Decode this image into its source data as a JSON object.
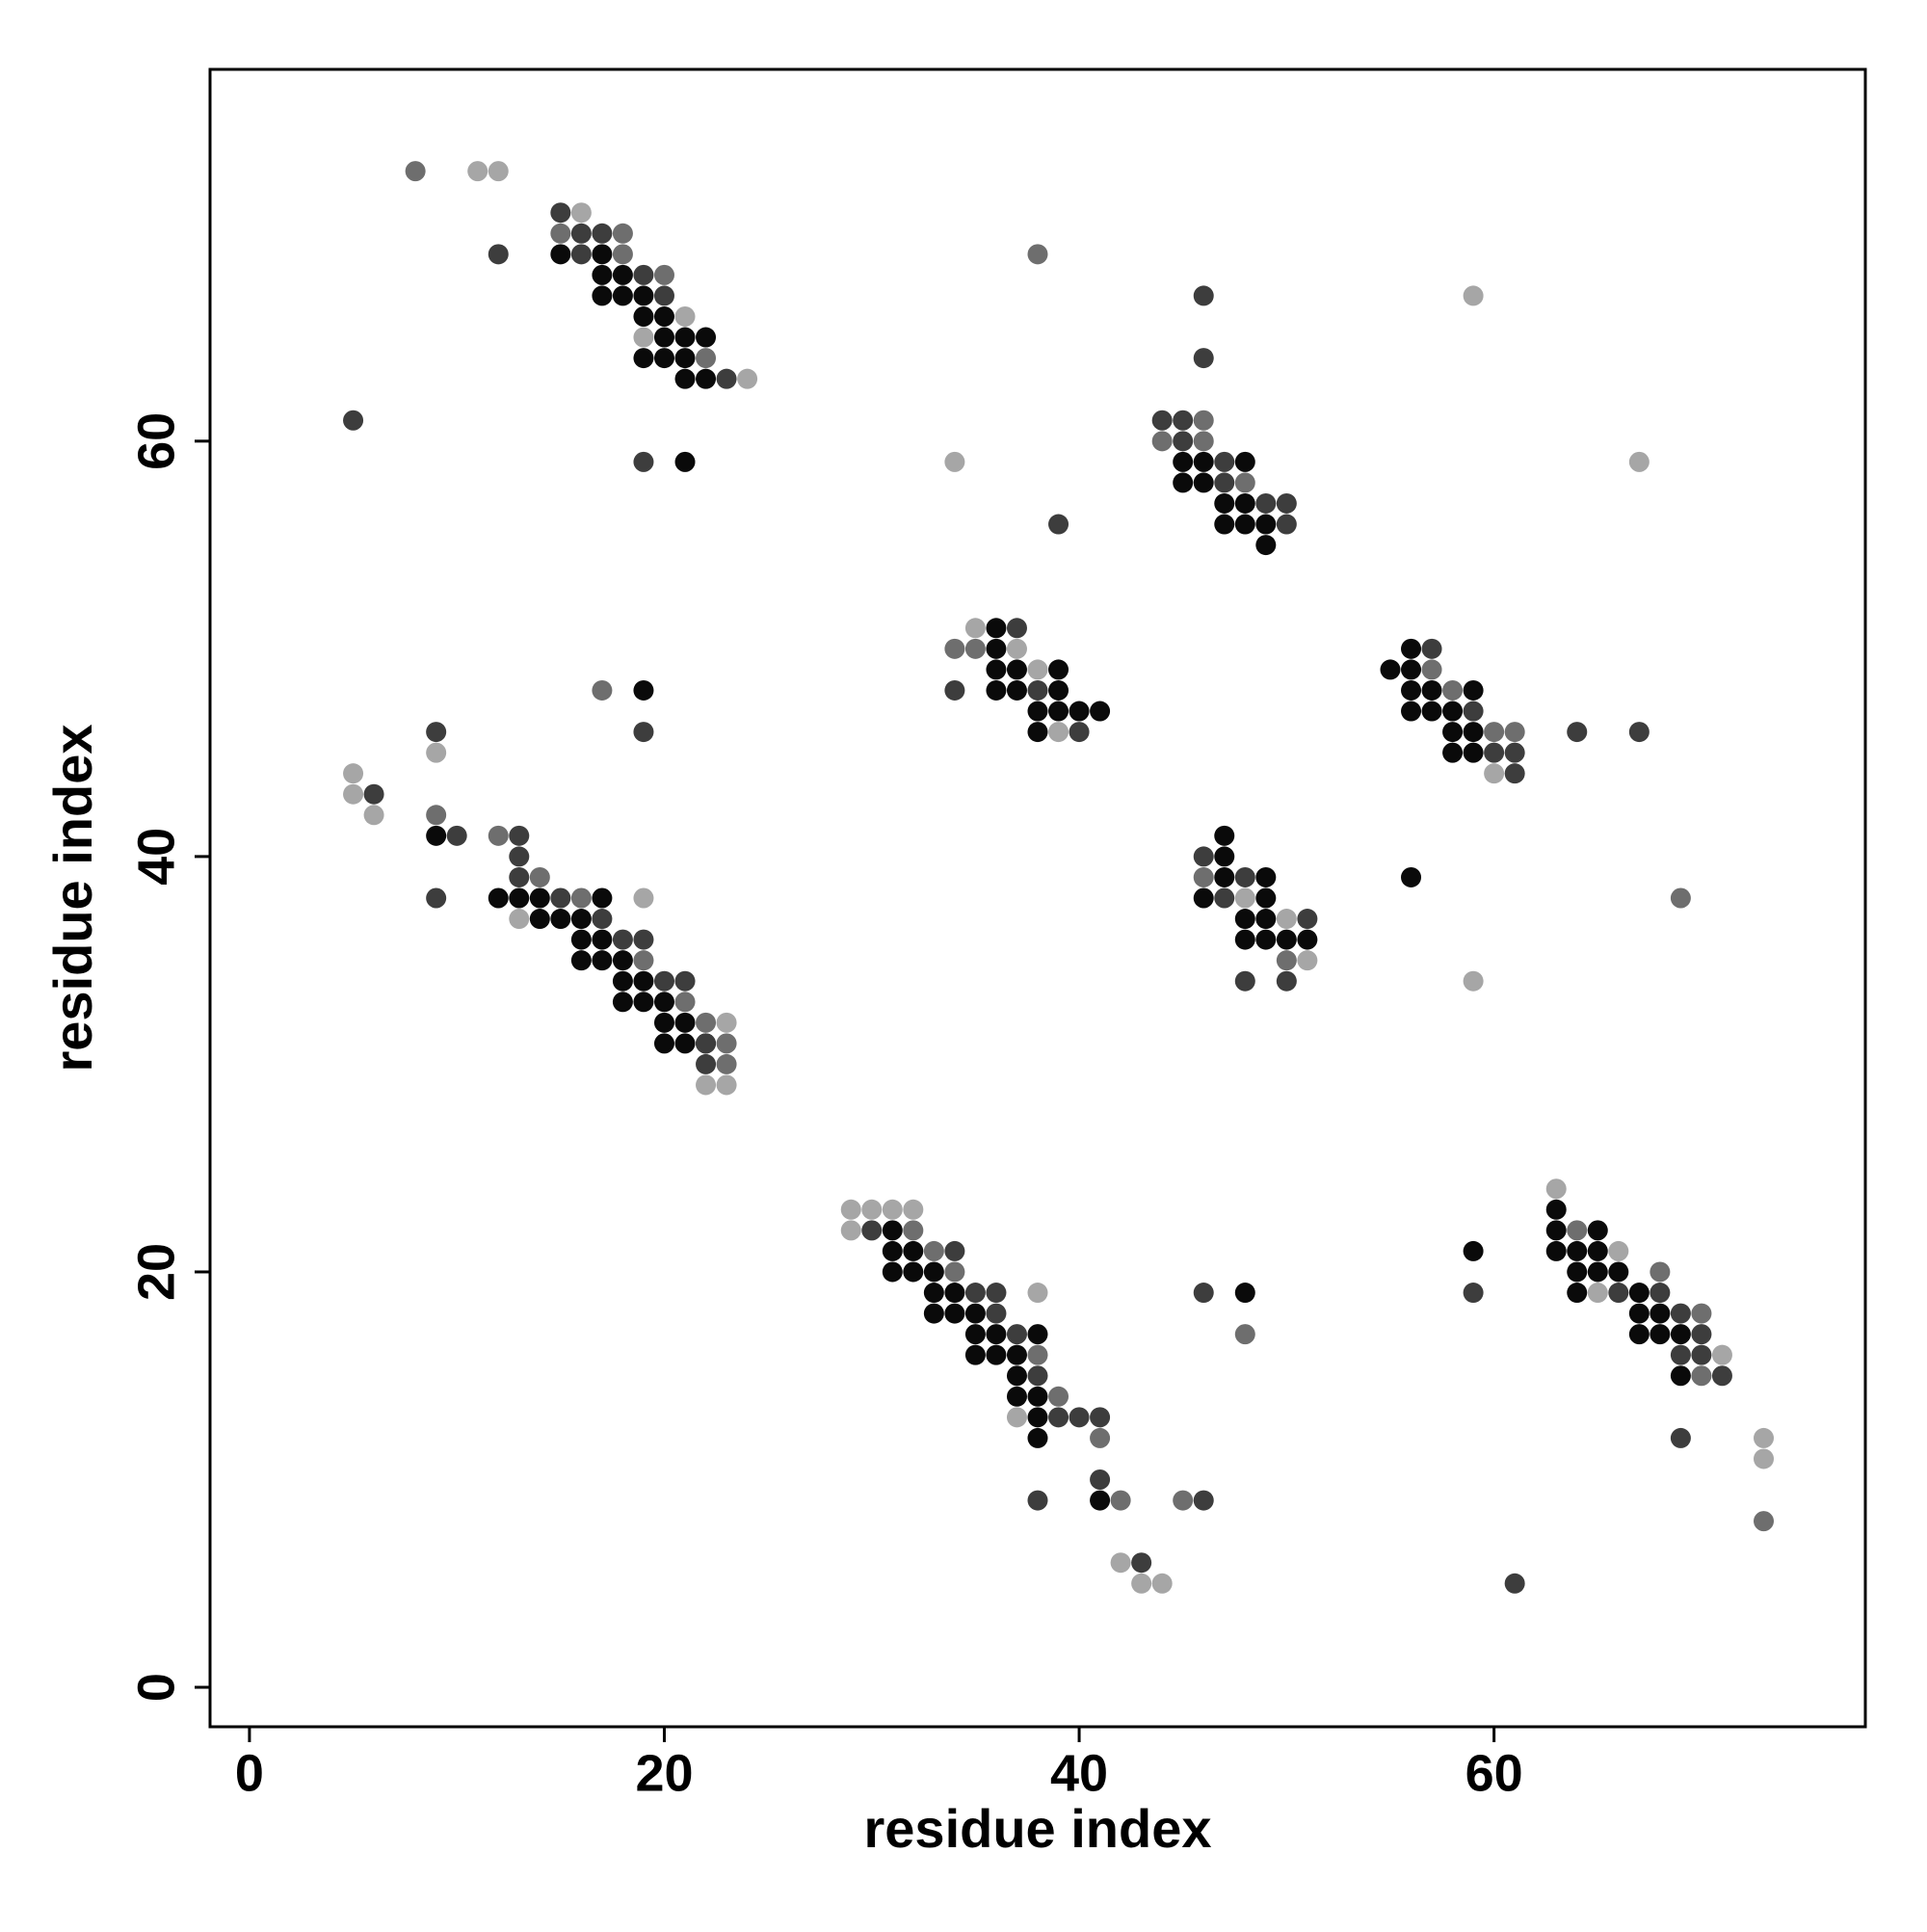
{
  "chart_data": {
    "type": "scatter",
    "xlabel": "residue index",
    "ylabel": "residue index",
    "xlim": [
      -1.9,
      77.9
    ],
    "ylim": [
      -1.9,
      77.9
    ],
    "xticks": [
      0,
      20,
      40,
      60
    ],
    "yticks": [
      0,
      20,
      40,
      60
    ],
    "grid": false,
    "series": [
      {
        "color": "#0a0a0a",
        "x": [
          15,
          17,
          17,
          18,
          17,
          18,
          19,
          19,
          20,
          20,
          21,
          22,
          19,
          20,
          21,
          21,
          22,
          21,
          45,
          46,
          48,
          45,
          46,
          47,
          48,
          47,
          48,
          49,
          49,
          36,
          36,
          56,
          36,
          37,
          39,
          55,
          56,
          19,
          36,
          37,
          39,
          56,
          57,
          59,
          38,
          39,
          40,
          41,
          56,
          57,
          58,
          38,
          58,
          59,
          58,
          59,
          9,
          47,
          47,
          47,
          49,
          56,
          12,
          13,
          14,
          17,
          46,
          49,
          14,
          15,
          16,
          48,
          49,
          16,
          17,
          48,
          49,
          50,
          51,
          16,
          17,
          18,
          18,
          19,
          18,
          19,
          20,
          20,
          21,
          20,
          21,
          22,
          63,
          31,
          63,
          65,
          31,
          32,
          59,
          63,
          64,
          65,
          31,
          32,
          33,
          64,
          65,
          66,
          33,
          34,
          48,
          64,
          67,
          33,
          34,
          35,
          67,
          68,
          35,
          36,
          38,
          67,
          68,
          69,
          35,
          36,
          37,
          37,
          69,
          37,
          38,
          38,
          38,
          41
        ],
        "y": [
          69,
          69,
          68,
          68,
          67,
          67,
          67,
          66,
          66,
          65,
          65,
          65,
          64,
          64,
          64,
          63,
          63,
          59,
          59,
          59,
          59,
          58,
          58,
          57,
          57,
          56,
          56,
          56,
          55,
          51,
          50,
          50,
          49,
          49,
          49,
          49,
          49,
          48,
          48,
          48,
          48,
          48,
          48,
          48,
          47,
          47,
          47,
          47,
          47,
          47,
          47,
          46,
          46,
          46,
          45,
          45,
          41,
          41,
          40,
          39,
          39,
          39,
          38,
          38,
          38,
          38,
          38,
          38,
          37,
          37,
          37,
          37,
          37,
          36,
          36,
          36,
          36,
          36,
          36,
          35,
          35,
          35,
          34,
          34,
          33,
          33,
          33,
          32,
          32,
          31,
          31,
          31,
          23,
          22,
          22,
          22,
          21,
          21,
          21,
          21,
          21,
          21,
          20,
          20,
          20,
          20,
          20,
          20,
          19,
          19,
          19,
          19,
          19,
          18,
          18,
          18,
          18,
          18,
          17,
          17,
          17,
          17,
          17,
          17,
          16,
          16,
          16,
          15,
          15,
          14,
          14,
          13,
          12,
          9
        ]
      },
      {
        "color": "#3d3d3d",
        "x": [
          15,
          16,
          17,
          12,
          16,
          19,
          20,
          46,
          46,
          23,
          5,
          44,
          45,
          45,
          19,
          47,
          47,
          49,
          50,
          39,
          50,
          37,
          57,
          34,
          38,
          59,
          9,
          19,
          40,
          64,
          67,
          60,
          61,
          61,
          6,
          10,
          13,
          13,
          46,
          13,
          48,
          9,
          15,
          47,
          17,
          51,
          18,
          19,
          20,
          21,
          48,
          50,
          22,
          22,
          30,
          34,
          35,
          36,
          46,
          59,
          66,
          68,
          36,
          69,
          37,
          70,
          69,
          70,
          38,
          71,
          39,
          40,
          41,
          69,
          41,
          46,
          43,
          61,
          38
        ],
        "y": [
          71,
          70,
          70,
          69,
          69,
          68,
          67,
          67,
          64,
          63,
          61,
          61,
          61,
          60,
          59,
          59,
          58,
          57,
          57,
          56,
          56,
          51,
          50,
          48,
          48,
          47,
          46,
          46,
          46,
          46,
          46,
          45,
          45,
          44,
          43,
          41,
          41,
          40,
          40,
          39,
          39,
          38,
          38,
          38,
          37,
          37,
          36,
          36,
          34,
          34,
          34,
          34,
          31,
          30,
          22,
          21,
          19,
          19,
          19,
          19,
          19,
          19,
          18,
          18,
          17,
          17,
          16,
          16,
          15,
          15,
          13,
          13,
          13,
          12,
          10,
          9,
          6,
          5,
          9
        ]
      },
      {
        "color": "#6e6e6e",
        "x": [
          8,
          15,
          18,
          18,
          38,
          20,
          22,
          46,
          44,
          46,
          48,
          34,
          35,
          57,
          17,
          58,
          60,
          61,
          9,
          12,
          14,
          46,
          16,
          69,
          19,
          50,
          21,
          22,
          23,
          23,
          32,
          64,
          33,
          34,
          68,
          70,
          48,
          38,
          70,
          39,
          41,
          42,
          45,
          73
        ],
        "y": [
          73,
          70,
          70,
          69,
          69,
          68,
          64,
          61,
          60,
          60,
          58,
          50,
          50,
          49,
          48,
          48,
          46,
          46,
          42,
          41,
          39,
          39,
          38,
          38,
          35,
          35,
          33,
          32,
          31,
          30,
          22,
          22,
          21,
          20,
          20,
          18,
          17,
          16,
          15,
          14,
          12,
          9,
          9,
          8
        ]
      },
      {
        "color": "#a6a6a6",
        "x": [
          11,
          12,
          16,
          21,
          19,
          24,
          34,
          67,
          59,
          35,
          37,
          38,
          39,
          9,
          5,
          60,
          5,
          6,
          19,
          48,
          13,
          50,
          51,
          59,
          23,
          22,
          23,
          63,
          29,
          30,
          31,
          32,
          29,
          66,
          38,
          65,
          71,
          37,
          73,
          73,
          42,
          43,
          44
        ],
        "y": [
          73,
          73,
          71,
          66,
          65,
          63,
          59,
          59,
          67,
          51,
          50,
          49,
          46,
          45,
          44,
          44,
          43,
          42,
          38,
          38,
          37,
          37,
          35,
          34,
          32,
          29,
          29,
          24,
          23,
          23,
          23,
          23,
          22,
          21,
          19,
          19,
          16,
          13,
          12,
          11,
          6,
          5,
          5
        ]
      }
    ]
  }
}
